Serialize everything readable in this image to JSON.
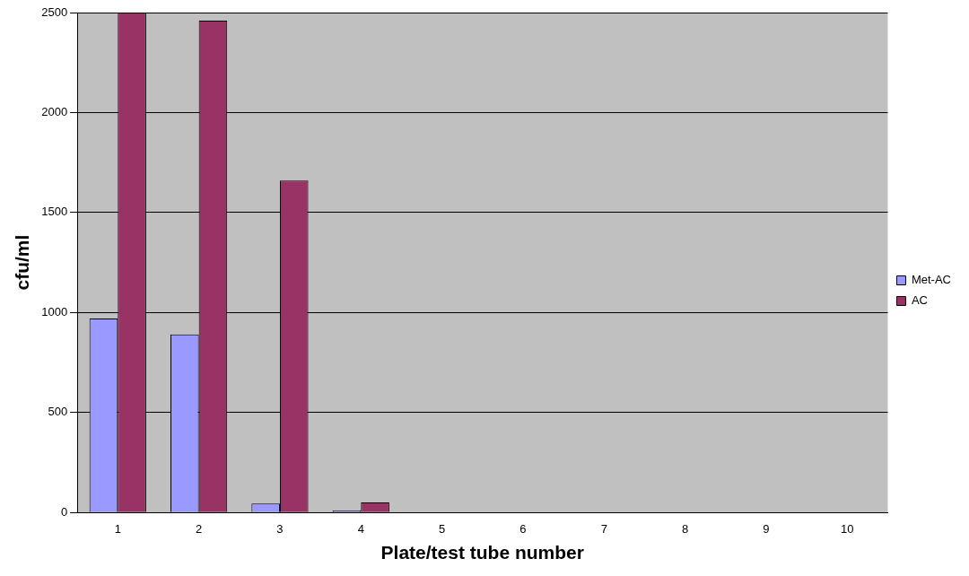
{
  "chart_data": {
    "type": "bar",
    "xlabel": "Plate/test tube number",
    "ylabel": "cfu/ml",
    "categories": [
      "1",
      "2",
      "3",
      "4",
      "5",
      "6",
      "7",
      "8",
      "9",
      "10"
    ],
    "series": [
      {
        "name": "Met-AC",
        "color": "#9999ff",
        "values": [
          970,
          890,
          45,
          10,
          0,
          0,
          0,
          0,
          0,
          0
        ]
      },
      {
        "name": "AC",
        "color": "#993366",
        "values": [
          2500,
          2460,
          1660,
          50,
          0,
          0,
          0,
          0,
          0,
          0
        ]
      }
    ],
    "ylim": [
      0,
      2500
    ],
    "yticks": [
      0,
      500,
      1000,
      1500,
      2000,
      2500
    ],
    "grid": "y",
    "legend": "right"
  }
}
